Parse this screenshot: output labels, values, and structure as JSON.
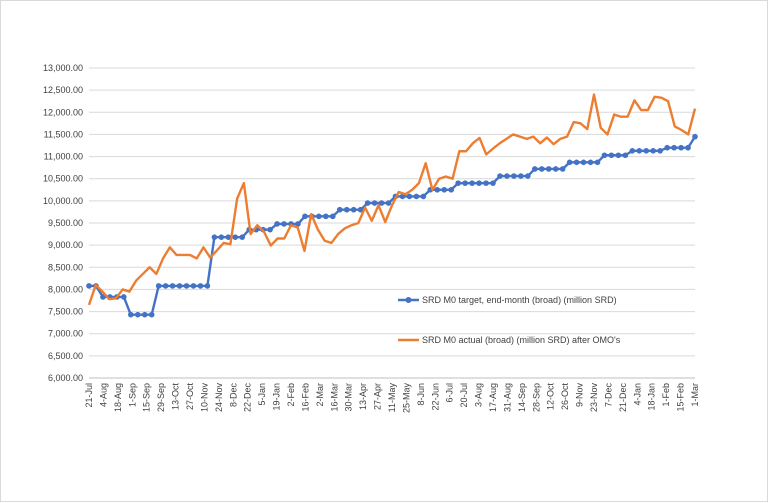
{
  "chart_data": {
    "type": "line",
    "title": "",
    "xlabel": "",
    "ylabel": "",
    "ylim": [
      6000,
      13000
    ],
    "yticks": [
      "6,000.00",
      "6,500.00",
      "7,000.00",
      "7,500.00",
      "8,000.00",
      "8,500.00",
      "9,000.00",
      "9,500.00",
      "10,000.00",
      "10,500.00",
      "11,000.00",
      "11,500.00",
      "12,000.00",
      "12,500.00",
      "13,000.00"
    ],
    "x_tick_labels": [
      "21-Jul",
      "4-Aug",
      "18-Aug",
      "1-Sep",
      "15-Sep",
      "29-Sep",
      "13-Oct",
      "27-Oct",
      "10-Nov",
      "24-Nov",
      "8-Dec",
      "22-Dec",
      "5-Jan",
      "19-Jan",
      "2-Feb",
      "16-Feb",
      "2-Mar",
      "16-Mar",
      "30-Mar",
      "13-Apr",
      "27-Apr",
      "11-May",
      "25-May",
      "8-Jun",
      "22-Jun",
      "6-Jul",
      "20-Jul",
      "3-Aug",
      "17-Aug",
      "31-Aug",
      "14-Sep",
      "28-Sep",
      "12-Oct",
      "26-Oct",
      "9-Nov",
      "23-Nov",
      "7-Dec",
      "21-Dec",
      "4-Jan",
      "18-Jan",
      "1-Feb",
      "15-Feb",
      "1-Mar"
    ],
    "grid": true,
    "legend_position": "right-middle",
    "series": [
      {
        "name": "SRD M0 target, end-month (broad)  (million SRD)",
        "color": "#4472c4",
        "marker": "circle",
        "values": [
          8080,
          8080,
          7830,
          7830,
          7830,
          7830,
          7430,
          7430,
          7430,
          7430,
          8080,
          8080,
          8080,
          8080,
          8080,
          8080,
          8080,
          8080,
          9180,
          9180,
          9180,
          9180,
          9180,
          9350,
          9350,
          9350,
          9350,
          9480,
          9480,
          9480,
          9480,
          9650,
          9650,
          9650,
          9650,
          9650,
          9800,
          9800,
          9800,
          9800,
          9950,
          9950,
          9950,
          9950,
          10100,
          10100,
          10100,
          10100,
          10100,
          10250,
          10250,
          10250,
          10250,
          10400,
          10400,
          10400,
          10400,
          10400,
          10400,
          10560,
          10560,
          10560,
          10560,
          10560,
          10720,
          10720,
          10720,
          10720,
          10720,
          10870,
          10870,
          10870,
          10870,
          10870,
          11030,
          11030,
          11030,
          11030,
          11130,
          11130,
          11130,
          11130,
          11130,
          11200,
          11200,
          11200,
          11200,
          11450
        ]
      },
      {
        "name": "SRD M0 actual (broad) (million SRD) after OMO's",
        "color": "#ed7d31",
        "values": [
          7650,
          8100,
          7950,
          7780,
          7800,
          8000,
          7950,
          8200,
          8350,
          8500,
          8350,
          8700,
          8950,
          8780,
          8780,
          8780,
          8700,
          8950,
          8720,
          8880,
          9050,
          9020,
          10050,
          10400,
          9250,
          9450,
          9300,
          8990,
          9150,
          9150,
          9450,
          9400,
          8870,
          9700,
          9350,
          9100,
          9050,
          9250,
          9380,
          9450,
          9500,
          9850,
          9550,
          9900,
          9520,
          9900,
          10200,
          10150,
          10250,
          10400,
          10850,
          10250,
          10500,
          10550,
          10500,
          11120,
          11120,
          11300,
          11420,
          11050,
          11180,
          11300,
          11400,
          11500,
          11450,
          11400,
          11450,
          11300,
          11430,
          11280,
          11400,
          11450,
          11780,
          11750,
          11620,
          12400,
          11650,
          11500,
          11950,
          11900,
          11900,
          12270,
          12050,
          12050,
          12350,
          12330,
          12250,
          11680,
          11600,
          11500,
          12080
        ]
      }
    ]
  }
}
